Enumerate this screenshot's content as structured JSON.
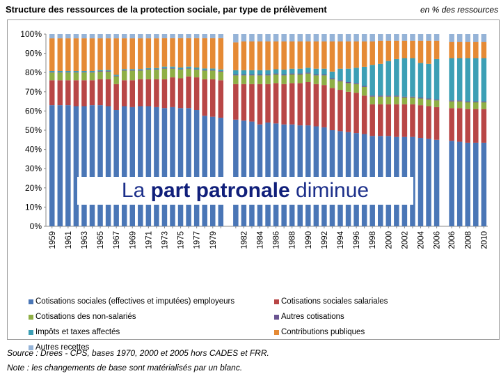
{
  "header": {
    "title": "Structure des ressources de la protection sociale, par type de prélèvement",
    "unit": "en % des ressources"
  },
  "banner": {
    "part1": "La ",
    "part2": "part patronale",
    "part3": " diminue"
  },
  "footer": {
    "source": "Source : Drees - CPS, bases 1970, 2000 et 2005 hors CADES et FRR.",
    "note": "Note :  les changements de base sont matérialisés par un blanc."
  },
  "chart_data": {
    "type": "bar",
    "stacked": true,
    "ylim": [
      0,
      100
    ],
    "yticks": [
      "0%",
      "10%",
      "20%",
      "30%",
      "40%",
      "50%",
      "60%",
      "70%",
      "80%",
      "90%",
      "100%"
    ],
    "grid": false,
    "legend_position": "bottom",
    "colors": [
      "#4a76b6",
      "#b84646",
      "#8faf45",
      "#6b5592",
      "#3c9fb5",
      "#e58a35",
      "#95b3d7"
    ],
    "series_names": [
      "Cotisations sociales (effectives et imputées) employeurs",
      "Cotisations sociales salariales",
      "Cotisations des non-salariés",
      "Autres cotisations",
      "Impôts et taxes affectés",
      "Contributions publiques",
      "Autres recettes"
    ],
    "categories": [
      "1959",
      "1960",
      "1961",
      "1962",
      "1963",
      "1964",
      "1965",
      "1966",
      "1967",
      "1968",
      "1969",
      "1970",
      "1971",
      "1972",
      "1973",
      "1974",
      "1975",
      "1976",
      "1977",
      "1978",
      "1979",
      "1980",
      "1981",
      "1982",
      "1983",
      "1984",
      "1985",
      "1986",
      "1987",
      "1988",
      "1989",
      "1990",
      "1991",
      "1992",
      "1993",
      "1994",
      "1995",
      "1996",
      "1997",
      "1998",
      "1999",
      "2000",
      "2001",
      "2002",
      "2003",
      "2004",
      "2005",
      "2006",
      "2006",
      "2007",
      "2008",
      "2009",
      "2010"
    ],
    "tick_labels": [
      "1959",
      "",
      "1961",
      "",
      "1963",
      "",
      "1965",
      "",
      "1967",
      "",
      "1969",
      "",
      "1971",
      "",
      "1973",
      "",
      "1975",
      "",
      "1977",
      "",
      "1979",
      "",
      "",
      "1982",
      "",
      "1984",
      "",
      "1986",
      "",
      "1988",
      "",
      "1990",
      "",
      "1992",
      "",
      "1994",
      "",
      "1996",
      "",
      "1998",
      "",
      "2000",
      "",
      "2002",
      "",
      "2004",
      "",
      "2006",
      "2006",
      "",
      "2008",
      "",
      "2010"
    ],
    "group_sizes": [
      22,
      26,
      5
    ],
    "stacks": [
      [
        63,
        13,
        4,
        0.3,
        0.5,
        17,
        2.2
      ],
      [
        63,
        13,
        4,
        0.3,
        0.5,
        17,
        2.2
      ],
      [
        63,
        13,
        4,
        0.3,
        0.5,
        17,
        2.2
      ],
      [
        62.5,
        13.5,
        4,
        0.3,
        0.5,
        17,
        2.2
      ],
      [
        62.5,
        13.5,
        4,
        0.3,
        0.5,
        17,
        2.2
      ],
      [
        63,
        13,
        4,
        0.3,
        0.5,
        17,
        2.2
      ],
      [
        63,
        13.5,
        4,
        0.3,
        0.5,
        16.5,
        2.2
      ],
      [
        62.5,
        14,
        4,
        0.3,
        0.5,
        16.5,
        2.2
      ],
      [
        60.5,
        13.5,
        4,
        0.3,
        0.5,
        19,
        2.2
      ],
      [
        62.5,
        13.5,
        5,
        0.3,
        0.5,
        16,
        2.2
      ],
      [
        62,
        14,
        5,
        0.3,
        0.5,
        16,
        2.2
      ],
      [
        62.5,
        14,
        4.5,
        0.3,
        0.5,
        16,
        2.2
      ],
      [
        62.5,
        14,
        5,
        0.3,
        0.5,
        15.5,
        2.2
      ],
      [
        62,
        14.5,
        5,
        0.3,
        0.5,
        15.5,
        2.2
      ],
      [
        61.5,
        15,
        5.5,
        0.3,
        0.8,
        14.8,
        2.1
      ],
      [
        62,
        15.5,
        4.5,
        0.3,
        0.8,
        14.8,
        2.1
      ],
      [
        61.5,
        15.5,
        4.5,
        0.3,
        0.8,
        15.3,
        2.1
      ],
      [
        61.5,
        16.5,
        4,
        0.3,
        0.8,
        14.8,
        2.1
      ],
      [
        60.5,
        17,
        4,
        0.3,
        0.8,
        15.3,
        2.1
      ],
      [
        57.5,
        19,
        4.5,
        0.3,
        0.8,
        15.8,
        2.1
      ],
      [
        57,
        19.5,
        4.5,
        0.3,
        0.8,
        15.8,
        2.1
      ],
      [
        56.5,
        19.5,
        4.5,
        0.3,
        0.8,
        16.3,
        2.1
      ],
      [
        55.5,
        18.5,
        4.5,
        0.5,
        2.2,
        14.5,
        4.3
      ],
      [
        55,
        19,
        4.5,
        0.5,
        2.2,
        15,
        3.8
      ],
      [
        54.5,
        19.5,
        4.5,
        0.5,
        2.2,
        15,
        3.8
      ],
      [
        53,
        21,
        4.5,
        0.5,
        2.2,
        15,
        3.8
      ],
      [
        54,
        20,
        4.5,
        0.5,
        2.2,
        15,
        3.8
      ],
      [
        53.5,
        21,
        4.5,
        0.5,
        2.2,
        14.5,
        3.8
      ],
      [
        53,
        21,
        4.5,
        0.5,
        2.5,
        14.7,
        3.8
      ],
      [
        53,
        21.5,
        4.5,
        0.5,
        2.5,
        14.2,
        3.8
      ],
      [
        52.5,
        22,
        4.5,
        0.5,
        2.5,
        14.2,
        3.8
      ],
      [
        52.5,
        22.5,
        4.5,
        0.5,
        2.5,
        13.7,
        3.8
      ],
      [
        52,
        22,
        4.5,
        0.5,
        3,
        14.2,
        3.8
      ],
      [
        51.5,
        22,
        5,
        0.5,
        3,
        14.2,
        3.8
      ],
      [
        50,
        22,
        4.5,
        0.5,
        3.5,
        15.7,
        3.8
      ],
      [
        49.5,
        21.5,
        4.5,
        0.5,
        6,
        14.2,
        3.8
      ],
      [
        49,
        21,
        4.5,
        0.5,
        7,
        14.2,
        3.8
      ],
      [
        48.5,
        21,
        4.5,
        0.5,
        8,
        13.7,
        3.8
      ],
      [
        48,
        20,
        4.5,
        0.5,
        10,
        13.2,
        3.8
      ],
      [
        47,
        16.5,
        4,
        0.5,
        16,
        12.2,
        3.8
      ],
      [
        47,
        16.5,
        4,
        0.5,
        16.5,
        12,
        3.5
      ],
      [
        47,
        16.5,
        4,
        0.5,
        18,
        10.5,
        3.5
      ],
      [
        46.5,
        17,
        4,
        0.5,
        19,
        9.5,
        3.5
      ],
      [
        46.5,
        17,
        3.5,
        0.5,
        20,
        9,
        3.5
      ],
      [
        46.5,
        17,
        3.5,
        0.5,
        20,
        9,
        3.5
      ],
      [
        46,
        17,
        3.5,
        0.5,
        18,
        11.5,
        3.5
      ],
      [
        45.5,
        17,
        3.5,
        0.5,
        18,
        12,
        3.5
      ],
      [
        45,
        17,
        3.5,
        0.5,
        21,
        9.5,
        3.5
      ],
      [
        44.5,
        17,
        3.5,
        0.5,
        22,
        8.5,
        4
      ],
      [
        44,
        17.5,
        3.5,
        0.5,
        22,
        8.5,
        4
      ],
      [
        43.5,
        17.5,
        3.5,
        0.5,
        22.5,
        8.5,
        4
      ],
      [
        43.5,
        17.5,
        3.5,
        0.5,
        22.5,
        8.5,
        4
      ],
      [
        43.5,
        17.5,
        3.5,
        0.5,
        22.5,
        8.5,
        4
      ]
    ]
  }
}
